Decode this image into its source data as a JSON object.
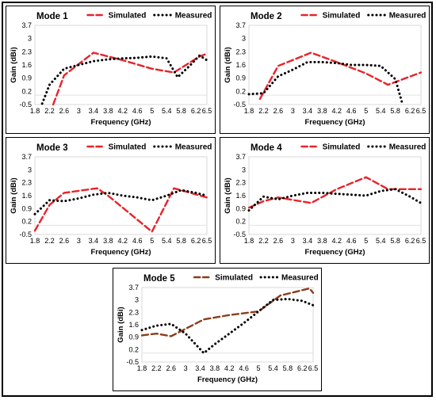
{
  "chart_data": [
    {
      "type": "line",
      "title": "Mode 1",
      "xlabel": "Frequency (GHz)",
      "ylabel": "Gain (dBi)",
      "xlim": [
        1.8,
        6.5
      ],
      "ylim": [
        -0.5,
        3.7
      ],
      "xticks": [
        "1.8",
        "2.2",
        "2.6",
        "3",
        "3.4",
        "3.8",
        "4.2",
        "4.6",
        "5",
        "5.4",
        "5.8",
        "6.2",
        "6.5"
      ],
      "yticks": [
        "-0.5",
        "0.2",
        "0.9",
        "1.6",
        "2.3",
        "3",
        "3.7"
      ],
      "legend_position": "top",
      "series": [
        {
          "name": "Simulated",
          "color": "#e8232a",
          "style": "dashed",
          "x": [
            2.3,
            2.6,
            3.4,
            4.2,
            5.0,
            5.6,
            6.3,
            6.5
          ],
          "y": [
            -0.5,
            1.05,
            2.25,
            1.85,
            1.4,
            1.2,
            2.05,
            2.2
          ]
        },
        {
          "name": "Measured",
          "color": "#000000",
          "style": "dotted",
          "x": [
            2.0,
            2.2,
            2.6,
            3.0,
            3.4,
            3.8,
            4.2,
            4.6,
            5.0,
            5.4,
            5.7,
            6.0,
            6.3,
            6.5
          ],
          "y": [
            -0.45,
            0.55,
            1.4,
            1.6,
            1.8,
            1.9,
            1.95,
            1.98,
            2.05,
            1.95,
            0.95,
            1.5,
            2.1,
            1.85
          ]
        }
      ]
    },
    {
      "type": "line",
      "title": "Mode 2",
      "xlabel": "Frequency (GHz)",
      "ylabel": "Gain (dBi)",
      "xlim": [
        1.8,
        6.5
      ],
      "ylim": [
        -0.5,
        3.7
      ],
      "xticks": [
        "1.8",
        "2.2",
        "2.6",
        "3",
        "3.4",
        "3.8",
        "4.2",
        "4.6",
        "5",
        "5.4",
        "5.8",
        "6.2",
        "6.5"
      ],
      "yticks": [
        "-0.5",
        "0.2",
        "0.9",
        "1.6",
        "2.3",
        "3",
        "3.7"
      ],
      "legend_position": "top",
      "series": [
        {
          "name": "Simulated",
          "color": "#e8232a",
          "style": "dashed",
          "x": [
            2.1,
            2.6,
            3.5,
            4.2,
            5.0,
            5.6,
            6.5
          ],
          "y": [
            -0.2,
            1.55,
            2.25,
            1.75,
            1.15,
            0.55,
            1.2
          ]
        },
        {
          "name": "Measured",
          "color": "#000000",
          "style": "dotted",
          "x": [
            1.8,
            2.2,
            2.6,
            3.0,
            3.4,
            3.8,
            4.2,
            4.6,
            5.0,
            5.4,
            5.8,
            6.0
          ],
          "y": [
            0.05,
            0.1,
            1.0,
            1.35,
            1.75,
            1.75,
            1.7,
            1.6,
            1.6,
            1.55,
            0.85,
            -0.5
          ]
        }
      ]
    },
    {
      "type": "line",
      "title": "Mode 3",
      "xlabel": "Frequency (GHz)",
      "ylabel": "Gain (dBi)",
      "xlim": [
        1.8,
        6.5
      ],
      "ylim": [
        -0.5,
        3.7
      ],
      "xticks": [
        "1.8",
        "2.2",
        "2.6",
        "3",
        "3.4",
        "3.8",
        "4.2",
        "4.6",
        "5",
        "5.4",
        "5.8",
        "6.2",
        "6.5"
      ],
      "yticks": [
        "-0.5",
        "0.2",
        "0.9",
        "1.6",
        "2.3",
        "3",
        "3.7"
      ],
      "legend_position": "top",
      "series": [
        {
          "name": "Simulated",
          "color": "#e8232a",
          "style": "dashed",
          "x": [
            1.8,
            2.2,
            2.6,
            3.5,
            3.8,
            5.0,
            5.6,
            6.5
          ],
          "y": [
            -0.3,
            1.1,
            1.75,
            2.0,
            1.6,
            -0.35,
            2.0,
            1.5
          ]
        },
        {
          "name": "Measured",
          "color": "#000000",
          "style": "dotted",
          "x": [
            1.8,
            2.2,
            2.6,
            3.0,
            3.4,
            3.8,
            4.2,
            4.6,
            5.0,
            5.4,
            5.8,
            6.2,
            6.5
          ],
          "y": [
            0.6,
            1.35,
            1.3,
            1.45,
            1.65,
            1.75,
            1.6,
            1.5,
            1.35,
            1.6,
            1.9,
            1.75,
            1.6
          ]
        }
      ]
    },
    {
      "type": "line",
      "title": "Mode 4",
      "xlabel": "Frequency (GHz)",
      "ylabel": "Gain (dBi)",
      "xlim": [
        1.8,
        6.5
      ],
      "ylim": [
        -0.5,
        3.7
      ],
      "xticks": [
        "1.8",
        "2.2",
        "2.6",
        "3",
        "3.4",
        "3.8",
        "4.2",
        "4.6",
        "5",
        "5.4",
        "5.8",
        "6.2",
        "6.5"
      ],
      "yticks": [
        "-0.5",
        "0.2",
        "0.9",
        "1.6",
        "2.3",
        "3",
        "3.7"
      ],
      "legend_position": "top",
      "series": [
        {
          "name": "Simulated",
          "color": "#e8232a",
          "style": "dashed",
          "x": [
            1.8,
            2.2,
            2.6,
            3.5,
            4.2,
            5.0,
            5.6,
            6.5
          ],
          "y": [
            0.95,
            1.3,
            1.5,
            1.2,
            1.95,
            2.6,
            1.95,
            1.95
          ]
        },
        {
          "name": "Measured",
          "color": "#000000",
          "style": "dotted",
          "x": [
            1.8,
            2.2,
            2.6,
            3.0,
            3.4,
            3.8,
            4.2,
            4.6,
            5.0,
            5.4,
            5.8,
            6.2,
            6.5
          ],
          "y": [
            0.8,
            1.55,
            1.4,
            1.6,
            1.75,
            1.75,
            1.7,
            1.65,
            1.6,
            1.85,
            1.95,
            1.55,
            1.2
          ]
        }
      ]
    },
    {
      "type": "line",
      "title": "Mode 5",
      "xlabel": "Frequency (GHz)",
      "ylabel": "Gain (dBi)",
      "xlim": [
        1.8,
        6.5
      ],
      "ylim": [
        -0.5,
        3.7
      ],
      "xticks": [
        "1.8",
        "2.2",
        "2.6",
        "3",
        "3.4",
        "3.8",
        "4.2",
        "4.6",
        "5",
        "5.4",
        "5.8",
        "6.2",
        "6.5"
      ],
      "yticks": [
        "-0.5",
        "0.2",
        "0.9",
        "1.6",
        "2.3",
        "3",
        "3.7"
      ],
      "legend_position": "top",
      "series": [
        {
          "name": "Simulated",
          "color": "#8b3d1a",
          "style": "dashed",
          "x": [
            1.8,
            2.2,
            2.6,
            3.5,
            4.2,
            5.0,
            5.6,
            6.4,
            6.5
          ],
          "y": [
            1.0,
            1.1,
            0.95,
            1.9,
            2.15,
            2.35,
            3.25,
            3.65,
            3.4
          ]
        },
        {
          "name": "Measured",
          "color": "#000000",
          "style": "dotted",
          "x": [
            1.8,
            2.2,
            2.6,
            3.0,
            3.5,
            3.8,
            4.2,
            4.6,
            5.0,
            5.4,
            5.8,
            6.2,
            6.5
          ],
          "y": [
            1.3,
            1.55,
            1.65,
            1.1,
            0.0,
            0.5,
            1.1,
            1.7,
            2.35,
            3.0,
            3.05,
            2.95,
            2.7
          ]
        }
      ]
    }
  ]
}
